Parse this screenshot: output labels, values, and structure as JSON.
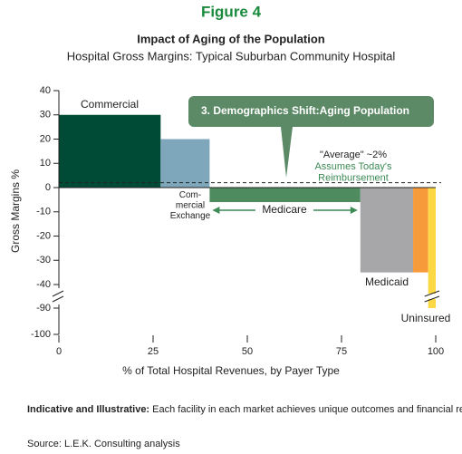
{
  "chart_data": {
    "type": "bar",
    "figure_label": "Figure 4",
    "title": "Impact of Aging of the Population",
    "subtitle": "Hospital Gross Margins: Typical Suburban Community Hospital",
    "xlabel": "% of Total Hospital Revenues, by Payer Type",
    "ylabel": "Gross Margins %",
    "categories": [
      "Commercial",
      "Com-\nmercial\nExchange",
      "Medicare",
      "Medicaid",
      null,
      "Uninsured"
    ],
    "bins": [
      0,
      27,
      40,
      80,
      94,
      98,
      100
    ],
    "values": [
      30,
      20,
      -6,
      -35,
      -35,
      -90
    ],
    "colors": [
      "#004b35",
      "#7ea7bc",
      "#4e8c60",
      "#a7a7a9",
      "#f79b3a",
      "#fdd845"
    ],
    "xlim": [
      0,
      100
    ],
    "xticks": [
      0,
      25,
      50,
      75,
      100
    ],
    "ylim": [
      -100,
      40
    ],
    "y_break": [
      -40,
      -90
    ],
    "yticks": [
      40,
      30,
      20,
      10,
      0,
      -10,
      -20,
      -30,
      -40,
      -90,
      -100
    ],
    "average": 2,
    "average_label": "\"Average\" ~2%",
    "annotation": "Assumes Today's\nReimbursement",
    "callout": "3. Demographics Shift:Aging Population"
  },
  "footer": {
    "note_bold": "Indicative and Illustrative:",
    "note": "Each facility in each market achieves unique outcomes and financial results.",
    "source": "Source: L.E.K. Consulting analysis"
  }
}
